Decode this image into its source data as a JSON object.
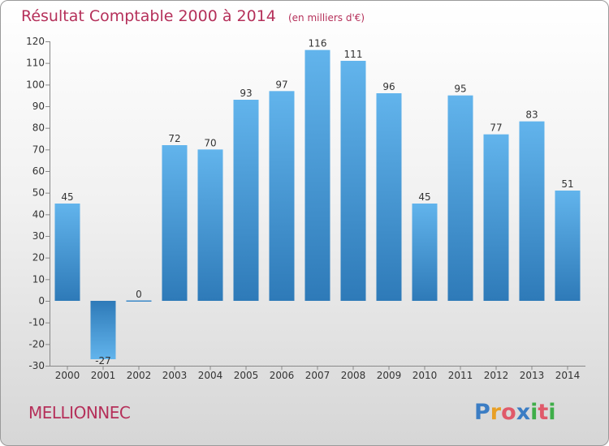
{
  "chart_data": {
    "type": "bar",
    "title": "Résultat Comptable 2000 à 2014",
    "unit": "(en milliers d'€)",
    "categories": [
      "2000",
      "2001",
      "2002",
      "2003",
      "2004",
      "2005",
      "2006",
      "2007",
      "2008",
      "2009",
      "2010",
      "2011",
      "2012",
      "2013",
      "2014"
    ],
    "values": [
      45,
      -27,
      0,
      72,
      70,
      93,
      97,
      116,
      111,
      96,
      45,
      95,
      77,
      83,
      51
    ],
    "ylim": [
      -30,
      120
    ],
    "yticks": [
      120,
      110,
      100,
      90,
      80,
      70,
      60,
      50,
      40,
      30,
      20,
      10,
      0,
      -10,
      -20,
      -30
    ],
    "xlabel": "",
    "ylabel": "",
    "grid": false
  },
  "footer": {
    "commune": "MELLIONNEC",
    "logo": {
      "letters": [
        "P",
        "r",
        "o",
        "x",
        "i",
        "t",
        "i"
      ],
      "colors": [
        "#3b7dc4",
        "#e8a026",
        "#e05a6a",
        "#3b7dc4",
        "#3fae49",
        "#e05a6a",
        "#3fae49"
      ]
    }
  },
  "colors": {
    "bar_top": "#62b4ec",
    "bar_bottom": "#2e7ab8",
    "title": "#b5305a"
  }
}
